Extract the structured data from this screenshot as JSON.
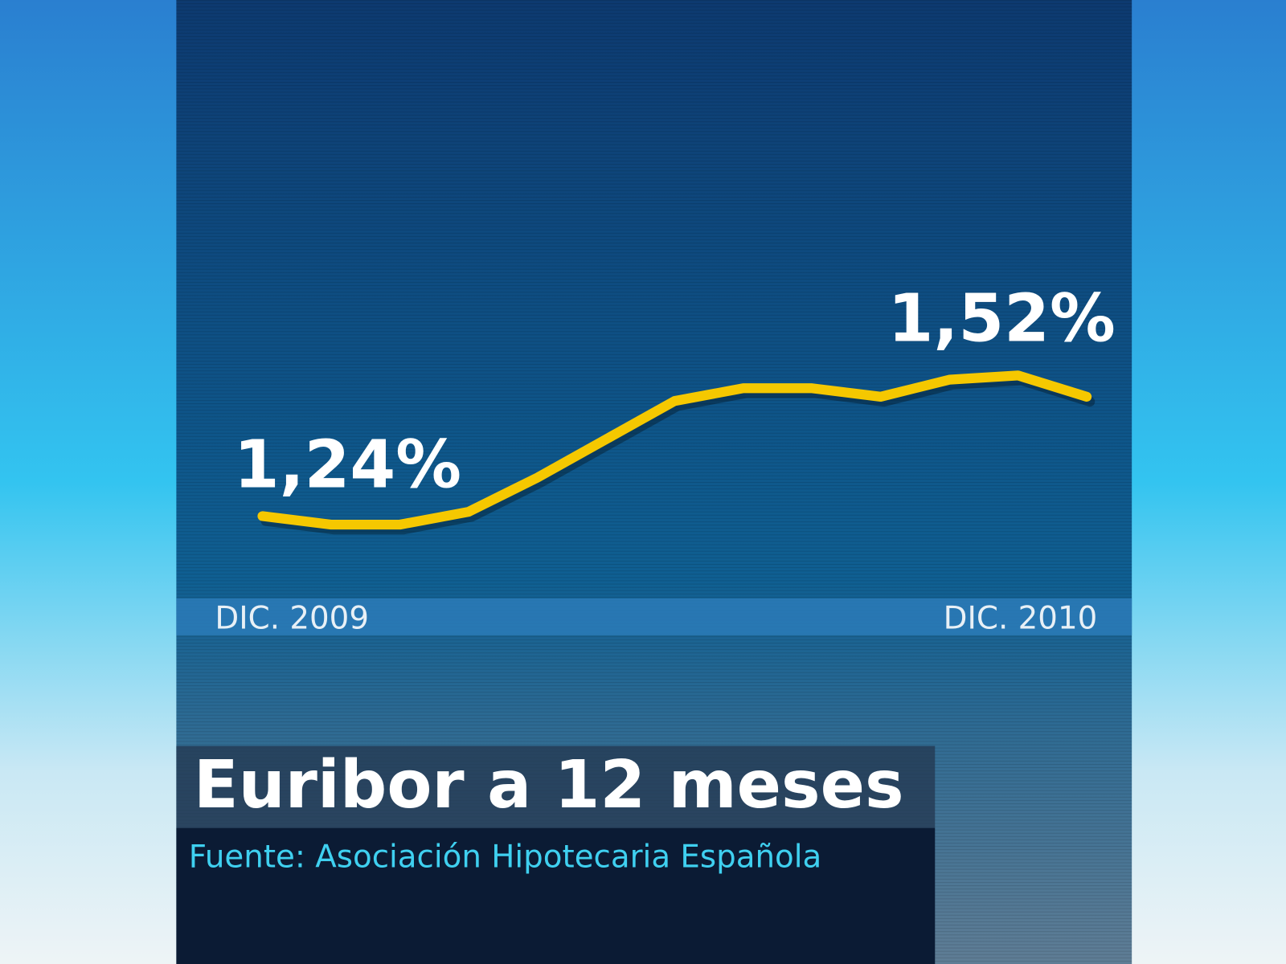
{
  "chart_data": {
    "type": "line",
    "title": "Euribor a 12 meses",
    "source": "Fuente:  Asociación Hipotecaria Española",
    "categories": [
      "DIC. 2009",
      null,
      null,
      null,
      null,
      null,
      null,
      null,
      null,
      null,
      null,
      null,
      "DIC. 2010"
    ],
    "series": [
      {
        "color": "#f5c800",
        "values": [
          1.24,
          1.22,
          1.22,
          1.25,
          1.33,
          1.42,
          1.51,
          1.54,
          1.54,
          1.52,
          1.56,
          1.57,
          1.52
        ],
        "value_labels": [
          "1,24%",
          null,
          null,
          null,
          null,
          null,
          null,
          null,
          null,
          null,
          null,
          null,
          "1,52%"
        ]
      }
    ]
  }
}
